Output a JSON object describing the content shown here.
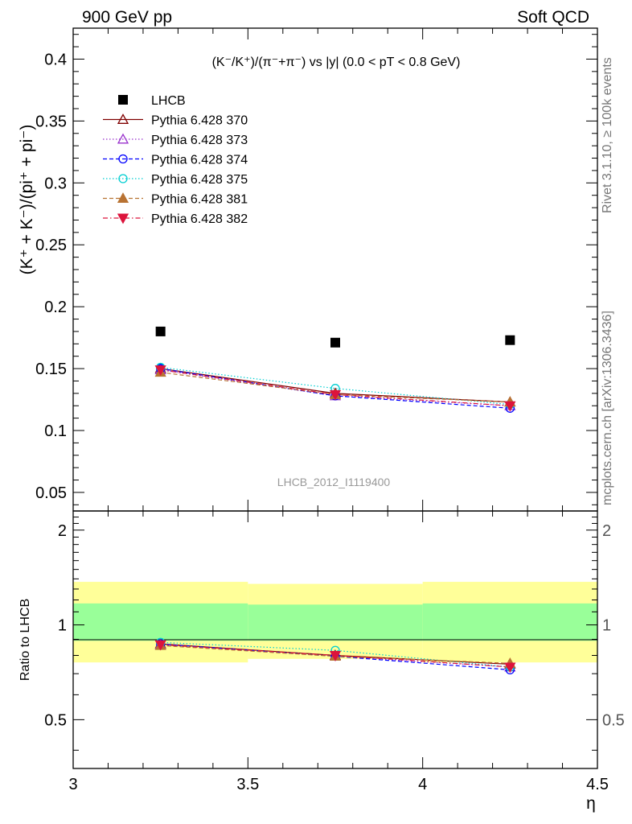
{
  "header": {
    "left": "900 GeV pp",
    "right": "Soft QCD"
  },
  "side_labels": {
    "rivet": "Rivet 3.1.10, ≥ 100k events",
    "mcplots": "mcplots.cern.ch [arXiv:1306.3436]"
  },
  "chart_data": [
    {
      "type": "scatter",
      "title": "(K⁻/K⁺)/(π⁻+π⁻) vs |y| (0.0 < pT < 0.8 GeV)",
      "ylabel": "(K⁺ + K⁻)/(pi⁺ + pi⁻)",
      "xlabel": "η",
      "analysis_label": "LHCB_2012_I1119400",
      "xlim": [
        3.0,
        4.5
      ],
      "ylim": [
        0.035,
        0.425
      ],
      "x_ticks": [
        3,
        3.5,
        4,
        4.5
      ],
      "y_ticks": [
        0.05,
        0.1,
        0.15,
        0.2,
        0.25,
        0.3,
        0.35,
        0.4
      ],
      "y_tick_labels": [
        "0.05",
        "0.1",
        "0.15",
        "0.2",
        "0.25",
        "0.3",
        "0.35",
        "0.4"
      ],
      "legend_position": "top-left",
      "x": [
        3.25,
        3.75,
        4.25
      ],
      "series": [
        {
          "name": "LHCB",
          "values": [
            0.18,
            0.171,
            0.173
          ],
          "color": "#000000",
          "marker": "square-filled",
          "line": "none"
        },
        {
          "name": "Pythia 6.428 370",
          "values": [
            0.15,
            0.13,
            0.123
          ],
          "color": "#800000",
          "marker": "triangle-open",
          "line": "solid"
        },
        {
          "name": "Pythia 6.428 373",
          "values": [
            0.149,
            0.128,
            0.12
          ],
          "color": "#9932cc",
          "marker": "triangle-open",
          "line": "dotted"
        },
        {
          "name": "Pythia 6.428 374",
          "values": [
            0.15,
            0.128,
            0.118
          ],
          "color": "#0000ff",
          "marker": "circle-open",
          "line": "dashed"
        },
        {
          "name": "Pythia 6.428 375",
          "values": [
            0.151,
            0.134,
            0.121
          ],
          "color": "#00ced1",
          "marker": "circle-open",
          "line": "dotted"
        },
        {
          "name": "Pythia 6.428 381",
          "values": [
            0.147,
            0.129,
            0.123
          ],
          "color": "#b87333",
          "marker": "triangle-filled",
          "line": "dashed"
        },
        {
          "name": "Pythia 6.428 382",
          "values": [
            0.149,
            0.129,
            0.12
          ],
          "color": "#dc143c",
          "marker": "triangle-down-filled",
          "line": "dashdot"
        }
      ]
    },
    {
      "type": "scatter",
      "ylabel": "Ratio to LHCB",
      "xlabel": "η",
      "xlim": [
        3.0,
        4.5
      ],
      "ylim": [
        0.35,
        2.3
      ],
      "x_ticks": [
        3,
        3.5,
        4,
        4.5
      ],
      "x_tick_labels": [
        "3",
        "3.5",
        "4",
        "4.5"
      ],
      "y_ticks": [
        0.5,
        1,
        2
      ],
      "y_tick_labels": [
        "0.5",
        "1",
        "2"
      ],
      "bands": [
        {
          "x0": 3.0,
          "x1": 3.5,
          "inner": [
            0.89,
            1.17
          ],
          "outer": [
            0.76,
            1.37
          ]
        },
        {
          "x0": 3.5,
          "x1": 4.0,
          "inner": [
            0.89,
            1.16
          ],
          "outer": [
            0.78,
            1.35
          ]
        },
        {
          "x0": 4.0,
          "x1": 4.5,
          "inner": [
            0.89,
            1.17
          ],
          "outer": [
            0.76,
            1.37
          ]
        }
      ],
      "band_colors": {
        "inner": "#99ff99",
        "outer": "#ffff99"
      },
      "x": [
        3.25,
        3.75,
        4.25
      ],
      "series": [
        {
          "name": "Pythia 6.428 370",
          "values": [
            0.87,
            0.8,
            0.75
          ],
          "color": "#800000",
          "marker": "triangle-open",
          "line": "solid"
        },
        {
          "name": "Pythia 6.428 373",
          "values": [
            0.865,
            0.795,
            0.735
          ],
          "color": "#9932cc",
          "marker": "triangle-open",
          "line": "dotted"
        },
        {
          "name": "Pythia 6.428 374",
          "values": [
            0.87,
            0.795,
            0.72
          ],
          "color": "#0000ff",
          "marker": "circle-open",
          "line": "dashed"
        },
        {
          "name": "Pythia 6.428 375",
          "values": [
            0.88,
            0.83,
            0.735
          ],
          "color": "#00ced1",
          "marker": "circle-open",
          "line": "dotted"
        },
        {
          "name": "Pythia 6.428 381",
          "values": [
            0.86,
            0.795,
            0.755
          ],
          "color": "#b87333",
          "marker": "triangle-filled",
          "line": "dashed"
        },
        {
          "name": "Pythia 6.428 382",
          "values": [
            0.865,
            0.8,
            0.735
          ],
          "color": "#dc143c",
          "marker": "triangle-down-filled",
          "line": "dashdot"
        }
      ]
    }
  ]
}
